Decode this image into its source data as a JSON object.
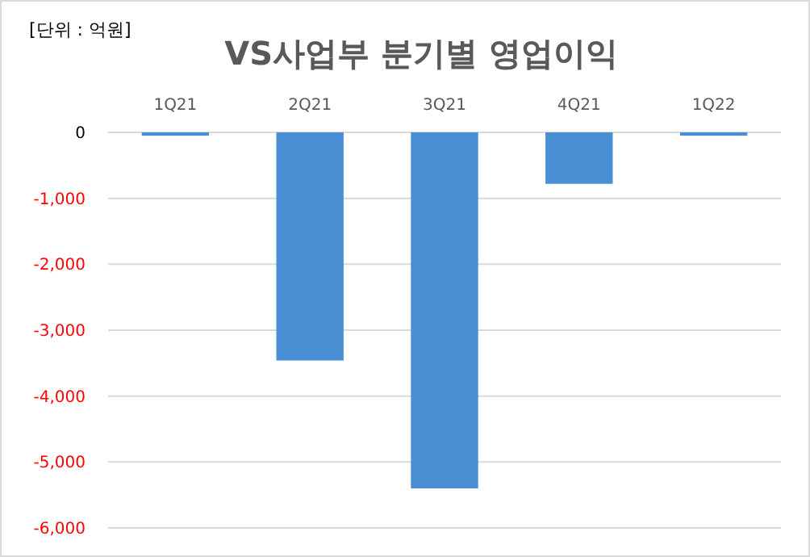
{
  "chart_data": {
    "type": "bar",
    "title": "VS사업부 분기별 영업이익",
    "annotations": [
      "[단위 : 억원]"
    ],
    "categories": [
      "1Q21",
      "2Q21",
      "3Q21",
      "4Q21",
      "1Q22"
    ],
    "values": [
      -50,
      -3460,
      -5400,
      -780,
      -50
    ],
    "color": "#4a8fd4",
    "ylim": [
      -6000,
      0
    ],
    "yticks": [
      {
        "value": -6000,
        "label": "-6,000"
      },
      {
        "value": -5000,
        "label": "-5,000"
      },
      {
        "value": -4000,
        "label": "-4,000"
      },
      {
        "value": -3000,
        "label": "-3,000"
      },
      {
        "value": -2000,
        "label": "-2,000"
      },
      {
        "value": -1000,
        "label": "-1,000"
      },
      0
    ],
    "grid": "y"
  }
}
